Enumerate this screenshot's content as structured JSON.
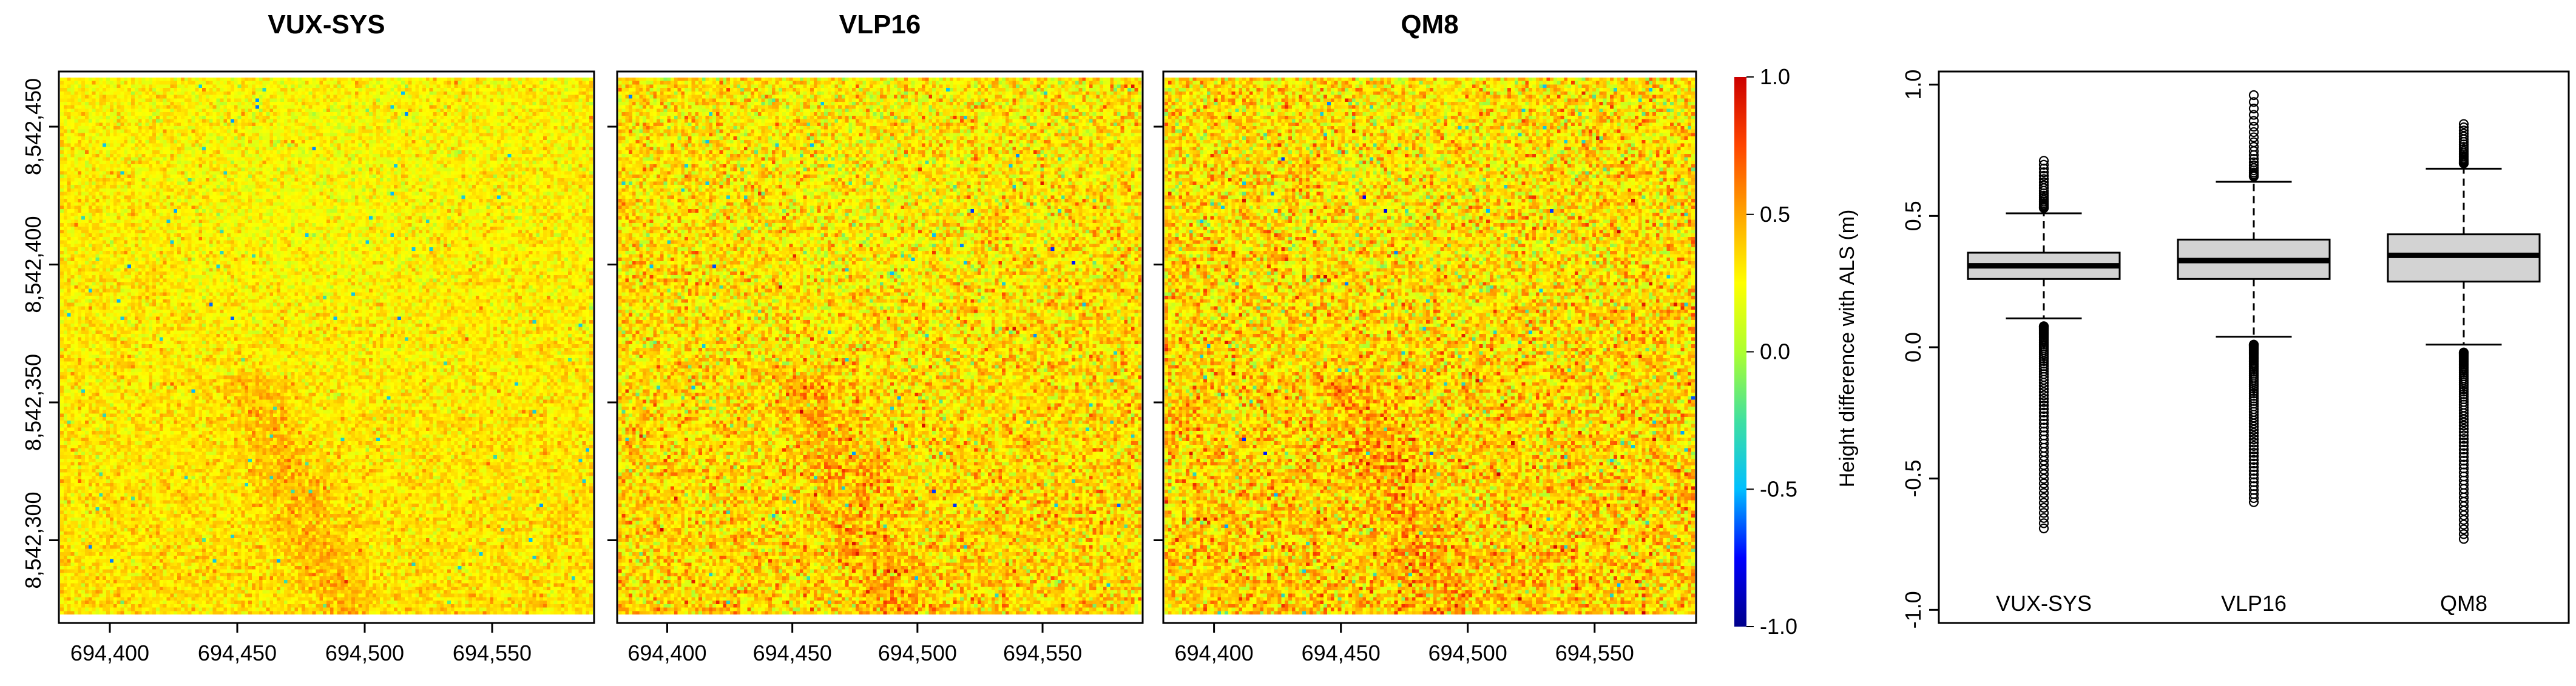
{
  "chart_data": [
    {
      "type": "heatmap",
      "title": "VUX-SYS",
      "xlim": [
        694380,
        694590
      ],
      "ylim": [
        8542270,
        8542470
      ],
      "x_ticks": [
        694400,
        694450,
        694500,
        694550
      ],
      "x_tick_labels": [
        "694,400",
        "694,450",
        "694,500",
        "694,550"
      ],
      "y_ticks": [
        8542300,
        8542350,
        8542400,
        8542450
      ],
      "y_tick_labels": [
        "8,542,300",
        "8,542,350",
        "8,542,400",
        "8,542,450"
      ],
      "value_summary": {
        "typical": 0.3,
        "spread": 0.1
      }
    },
    {
      "type": "heatmap",
      "title": "VLP16",
      "xlim": [
        694380,
        694590
      ],
      "ylim": [
        8542270,
        8542470
      ],
      "x_ticks": [
        694400,
        694450,
        694500,
        694550
      ],
      "x_tick_labels": [
        "694,400",
        "694,450",
        "694,500",
        "694,550"
      ],
      "value_summary": {
        "typical": 0.33,
        "spread": 0.16
      }
    },
    {
      "type": "heatmap",
      "title": "QM8",
      "xlim": [
        694380,
        694590
      ],
      "ylim": [
        8542270,
        8542470
      ],
      "x_ticks": [
        694400,
        694450,
        694500,
        694550
      ],
      "x_tick_labels": [
        "694,400",
        "694,450",
        "694,500",
        "694,550"
      ],
      "value_summary": {
        "typical": 0.35,
        "spread": 0.18
      }
    },
    {
      "type": "colorbar",
      "range": [
        -1.0,
        1.0
      ],
      "ticks": [
        1.0,
        0.5,
        0.0,
        -0.5,
        -1.0
      ],
      "tick_labels": [
        "1.0",
        "0.5",
        "0.0",
        "-0.5",
        "-1.0"
      ],
      "colormap": [
        "#00008b",
        "#0000ff",
        "#00bfff",
        "#40e0a0",
        "#adff2f",
        "#ffff00",
        "#ffa500",
        "#ff4500",
        "#cc0000"
      ]
    },
    {
      "type": "box",
      "categories": [
        "VUX-SYS",
        "VLP16",
        "QM8"
      ],
      "ylabel": "Height difference with ALS (m)",
      "ylim": [
        -1.05,
        1.05
      ],
      "y_ticks": [
        -1.0,
        -0.5,
        0.0,
        0.5,
        1.0
      ],
      "y_tick_labels": [
        "-1.0",
        "-0.5",
        "0.0",
        "0.5",
        "1.0"
      ],
      "boxes": [
        {
          "name": "VUX-SYS",
          "q1": 0.26,
          "median": 0.31,
          "q3": 0.36,
          "whisker_low": 0.11,
          "whisker_high": 0.51,
          "outlier_low_max": 0.08,
          "outlier_low_min": -0.69,
          "outlier_high_min": 0.53,
          "outlier_high_max": 0.71
        },
        {
          "name": "VLP16",
          "q1": 0.26,
          "median": 0.33,
          "q3": 0.41,
          "whisker_low": 0.04,
          "whisker_high": 0.63,
          "outlier_low_max": 0.01,
          "outlier_low_min": -0.59,
          "outlier_high_min": 0.65,
          "outlier_high_max": 0.96
        },
        {
          "name": "QM8",
          "q1": 0.25,
          "median": 0.35,
          "q3": 0.43,
          "whisker_low": 0.01,
          "whisker_high": 0.68,
          "outlier_low_max": -0.02,
          "outlier_low_min": -0.73,
          "outlier_high_min": 0.7,
          "outlier_high_max": 0.85
        }
      ],
      "box_fill": "#d3d3d3"
    }
  ]
}
